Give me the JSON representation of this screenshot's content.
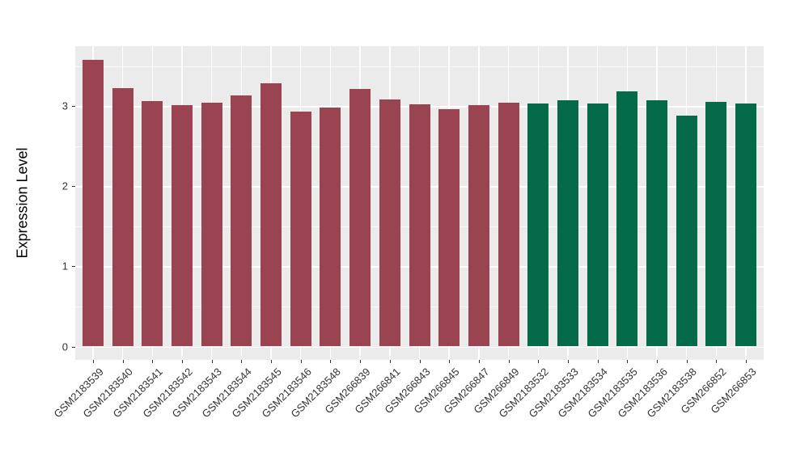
{
  "chart_data": {
    "type": "bar",
    "title": "",
    "xlabel": "",
    "ylabel": "Expression Level",
    "categories": [
      "GSM2183539",
      "GSM2183540",
      "GSM2183541",
      "GSM2183542",
      "GSM2183543",
      "GSM2183544",
      "GSM2183545",
      "GSM2183546",
      "GSM2183548",
      "GSM266839",
      "GSM266841",
      "GSM266843",
      "GSM266845",
      "GSM266847",
      "GSM266849",
      "GSM2183532",
      "GSM2183533",
      "GSM2183534",
      "GSM2183535",
      "GSM2183536",
      "GSM2183538",
      "GSM266852",
      "GSM266853"
    ],
    "values": [
      3.58,
      3.23,
      3.06,
      3.01,
      3.04,
      3.13,
      3.29,
      2.93,
      2.98,
      3.21,
      3.08,
      3.02,
      2.96,
      3.01,
      3.04,
      3.03,
      3.07,
      3.03,
      3.18,
      3.07,
      2.88,
      3.05,
      3.03
    ],
    "groups": [
      "group1",
      "group1",
      "group1",
      "group1",
      "group1",
      "group1",
      "group1",
      "group1",
      "group1",
      "group1",
      "group1",
      "group1",
      "group1",
      "group1",
      "group1",
      "group2",
      "group2",
      "group2",
      "group2",
      "group2",
      "group2",
      "group2",
      "group2"
    ],
    "group_colors": {
      "group1": "#9B4451",
      "group2": "#056A49"
    },
    "yticks": [
      0,
      1,
      2,
      3
    ],
    "ytick_labels": [
      "0",
      "1",
      "2",
      "3"
    ],
    "yminor": [
      0.5,
      1.5,
      2.5,
      3.5
    ],
    "ylim": [
      0,
      3.75
    ],
    "grid": true,
    "legend_position": "none",
    "panel_bg": "#EBEBEB",
    "grid_color": "#FFFFFF",
    "axis_text_color": "#333333"
  }
}
